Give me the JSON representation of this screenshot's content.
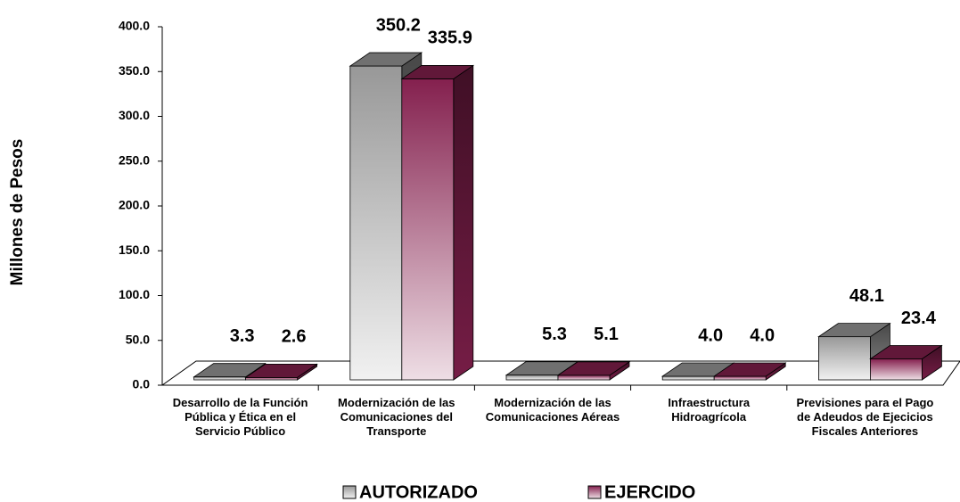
{
  "chart_data": {
    "type": "bar3d",
    "y_label": "Millones de Pesos",
    "categories": [
      "Desarrollo de la Función Pública y Ética en el Servicio Público",
      "Modernización de las Comunicaciones del Transporte",
      "Modernización de las Comunicaciones Aéreas",
      "Infraestructura Hidroagrícola",
      "Previsiones para el Pago de Adeudos de Ejecicios Fiscales Anteriores"
    ],
    "series": [
      {
        "name": "AUTORIZADO",
        "color": "#a0a0a0",
        "values": [
          3.3,
          350.2,
          5.3,
          4.0,
          48.1
        ],
        "value_labels": [
          "3.3",
          "350.2",
          "5.3",
          "4.0",
          "48.1"
        ]
      },
      {
        "name": "EJERCIDO",
        "color": "#8b2252",
        "values": [
          2.6,
          335.9,
          5.1,
          4.0,
          23.4
        ],
        "value_labels": [
          "2.6",
          "335.9",
          "5.1",
          "4.0",
          "23.4"
        ]
      }
    ],
    "ylim": [
      0,
      400
    ],
    "yticks": [
      {
        "value": 0,
        "label": "0.0"
      },
      {
        "value": 50,
        "label": "50.0"
      },
      {
        "value": 100,
        "label": "100.0"
      },
      {
        "value": 150,
        "label": "150.0"
      },
      {
        "value": 200,
        "label": "200.0"
      },
      {
        "value": 250,
        "label": "250.0"
      },
      {
        "value": 300,
        "label": "300.0"
      },
      {
        "value": 350,
        "label": "350.0"
      },
      {
        "value": 400,
        "label": "400.0"
      }
    ],
    "legend": "bottom"
  }
}
